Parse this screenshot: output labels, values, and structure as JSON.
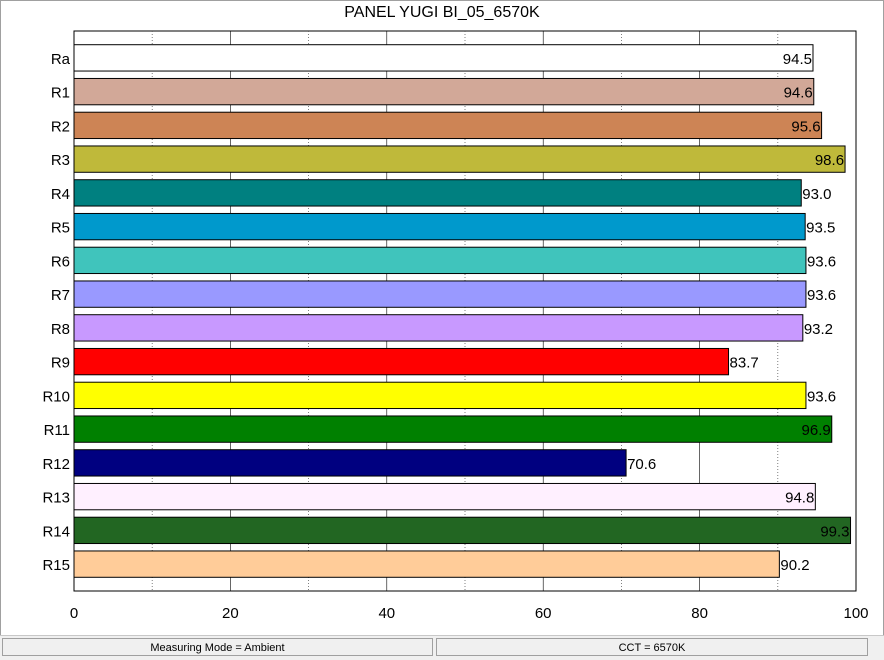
{
  "chart_data": {
    "type": "bar",
    "orientation": "horizontal",
    "title": "PANEL YUGI BI_05_6570K",
    "categories": [
      "Ra",
      "R1",
      "R2",
      "R3",
      "R4",
      "R5",
      "R6",
      "R7",
      "R8",
      "R9",
      "R10",
      "R11",
      "R12",
      "R13",
      "R14",
      "R15"
    ],
    "values": [
      94.5,
      94.6,
      95.6,
      98.6,
      93.0,
      93.5,
      93.6,
      93.6,
      93.2,
      83.7,
      93.6,
      96.9,
      70.6,
      94.8,
      99.3,
      90.2
    ],
    "value_labels": [
      "94.5",
      "94.6",
      "95.6",
      "98.6",
      "93.0",
      "93.5",
      "93.6",
      "93.6",
      "93.2",
      "83.7",
      "93.6",
      "96.9",
      "70.6",
      "94.8",
      "99.3",
      "90.2"
    ],
    "colors": [
      "#ffffff",
      "#d2a898",
      "#cd8455",
      "#bfb93a",
      "#008080",
      "#0099cc",
      "#40c4bc",
      "#9999ff",
      "#c899ff",
      "#ff0000",
      "#ffff00",
      "#008000",
      "#000080",
      "#fff0ff",
      "#226622",
      "#ffcc99"
    ],
    "xlim": [
      0,
      100
    ],
    "x_ticks": [
      "0",
      "20",
      "40",
      "60",
      "80",
      "100"
    ],
    "grid": true,
    "xlabel": "",
    "ylabel": ""
  },
  "status": {
    "measuring_mode": "Measuring Mode = Ambient",
    "cct": "CCT = 6570K"
  }
}
